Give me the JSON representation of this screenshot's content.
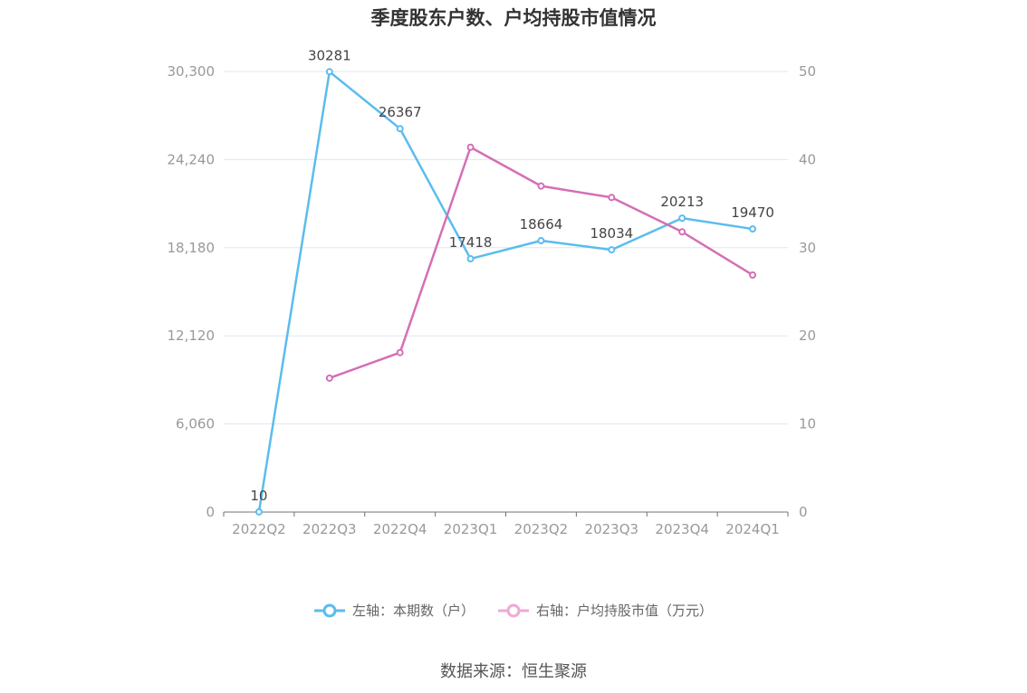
{
  "chart_data": {
    "type": "line",
    "title": "季度股东户数、户均持股市值情况",
    "categories": [
      "2022Q2",
      "2022Q3",
      "2022Q4",
      "2023Q1",
      "2023Q2",
      "2023Q3",
      "2023Q4",
      "2024Q1"
    ],
    "left_axis": {
      "ticks": [
        "0",
        "6,060",
        "12,120",
        "18,180",
        "24,240",
        "30,300"
      ],
      "ylim": [
        0,
        30300
      ]
    },
    "right_axis": {
      "ticks": [
        "0",
        "10",
        "20",
        "30",
        "40",
        "50"
      ],
      "ylim": [
        0,
        50
      ]
    },
    "series": [
      {
        "name": "左轴：本期数（户）",
        "axis": "left",
        "color": "#5bbcee",
        "values": [
          10,
          30281,
          26367,
          17418,
          18664,
          18034,
          20213,
          19470
        ],
        "labels": [
          "10",
          "30281",
          "26367",
          "17418",
          "18664",
          "18034",
          "20213",
          "19470"
        ]
      },
      {
        "name": "右轴：户均持股市值（万元）",
        "axis": "right",
        "color": "#d46fb5",
        "legend_color": "#f0a9d6",
        "values": [
          null,
          15.2,
          18.1,
          41.4,
          37.0,
          35.7,
          31.8,
          26.9
        ]
      }
    ],
    "grid": true,
    "legend": "bottom-center"
  },
  "source": "数据来源：恒生聚源"
}
